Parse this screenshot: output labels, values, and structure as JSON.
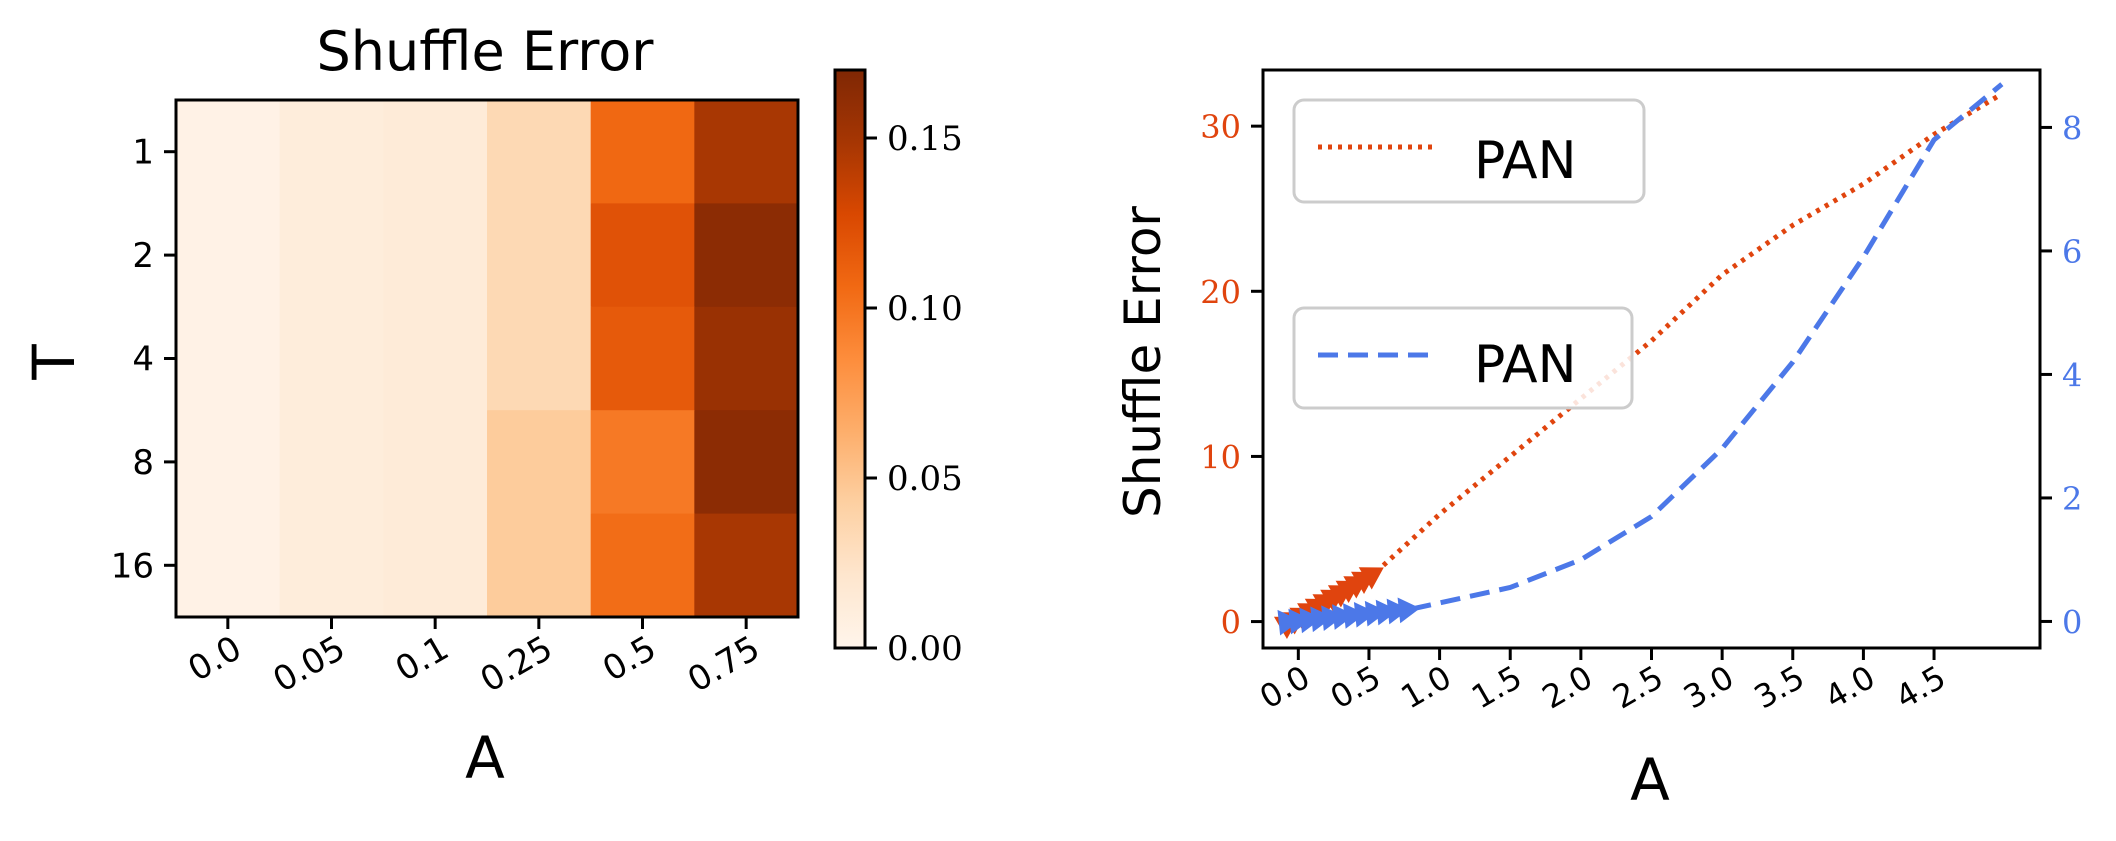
{
  "chart_data": [
    {
      "type": "heatmap",
      "title": "Shuffle Error",
      "xlabel": "A",
      "ylabel": "T",
      "x_categories": [
        "0.0",
        "0.05",
        "0.1",
        "0.25",
        "0.5",
        "0.75"
      ],
      "y_categories": [
        "1",
        "2",
        "4",
        "8",
        "16"
      ],
      "values": [
        [
          0.004,
          0.012,
          0.014,
          0.034,
          0.107,
          0.148
        ],
        [
          0.004,
          0.012,
          0.014,
          0.034,
          0.121,
          0.163
        ],
        [
          0.004,
          0.012,
          0.014,
          0.034,
          0.116,
          0.156
        ],
        [
          0.004,
          0.012,
          0.014,
          0.045,
          0.097,
          0.163
        ],
        [
          0.004,
          0.012,
          0.014,
          0.045,
          0.104,
          0.148
        ]
      ],
      "colormap": "Oranges",
      "colorbar": {
        "range": [
          0,
          0.17
        ],
        "ticks": [
          0,
          0.05,
          0.1,
          0.15
        ],
        "tick_labels": [
          "0.00",
          "0.05",
          "0.10",
          "0.15"
        ]
      }
    },
    {
      "type": "line",
      "xlabel": "A",
      "ylabel": "Shuffle Error",
      "x_ticks": [
        0.0,
        0.5,
        1.0,
        1.5,
        2.0,
        2.5,
        3.0,
        3.5,
        4.0,
        4.5
      ],
      "x_tick_labels": [
        "0.0",
        "0.5",
        "1.0",
        "1.5",
        "2.0",
        "2.5",
        "3.0",
        "3.5",
        "4.0",
        "4.5"
      ],
      "xlim": [
        -0.25,
        5.25
      ],
      "ylim_left": [
        -1.6,
        33.4
      ],
      "ylim_right": [
        -0.43,
        8.93
      ],
      "y_ticks_left": [
        0,
        10,
        20,
        30
      ],
      "y_ticks_right": [
        0,
        2,
        4,
        6,
        8
      ],
      "left_axis_color": "#e0440e",
      "right_axis_color": "#4c78e8",
      "legend_placement": "upper left (two separate boxes)",
      "series": [
        {
          "name": "PAN",
          "axis": "left",
          "style": "dotted",
          "color": "#e0440e",
          "x": [
            0.55,
            1.0,
            1.5,
            2.0,
            2.5,
            3.0,
            3.5,
            4.0,
            4.5,
            4.95
          ],
          "y": [
            3.0,
            6.5,
            10.0,
            13.5,
            17.0,
            21.0,
            24.0,
            26.5,
            29.5,
            31.8
          ],
          "arrows": {
            "x0": -0.05,
            "y0": 0.0,
            "x1": 0.55,
            "y1": 3.0
          }
        },
        {
          "name": "PAN",
          "axis": "right",
          "style": "dashed",
          "color": "#4c78e8",
          "x": [
            0.8,
            1.0,
            1.5,
            2.0,
            2.5,
            3.0,
            3.5,
            4.0,
            4.5,
            4.98
          ],
          "y": [
            0.2,
            0.3,
            0.55,
            1.0,
            1.7,
            2.8,
            4.2,
            5.9,
            7.8,
            8.7
          ],
          "arrows": {
            "x0": -0.05,
            "y0": 0.0,
            "x1": 0.8,
            "y1": 0.2
          }
        }
      ]
    }
  ]
}
